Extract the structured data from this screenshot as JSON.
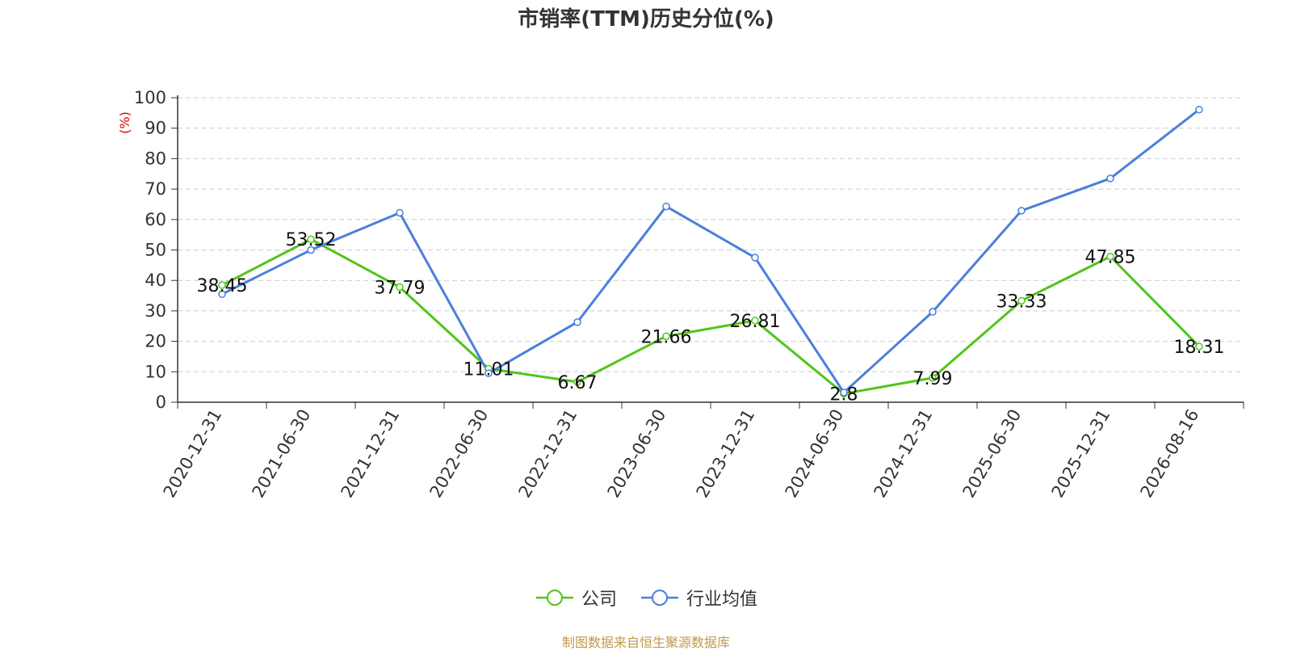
{
  "title": "市销率(TTM)历史分位(%)",
  "source_note": "制图数据来自恒生聚源数据库",
  "chart_data": {
    "type": "line",
    "title": "市销率(TTM)历史分位(%)",
    "xlabel": "",
    "ylabel": "(%)",
    "ylim": [
      0,
      100
    ],
    "yticks": [
      0,
      10,
      20,
      30,
      40,
      50,
      60,
      70,
      80,
      90,
      100
    ],
    "grid": true,
    "legend_position": "bottom",
    "categories": [
      "2020-12-31",
      "2021-06-30",
      "2021-12-31",
      "2022-06-30",
      "2022-12-31",
      "2023-06-30",
      "2023-12-31",
      "2024-06-30",
      "2024-12-31",
      "2025-06-30",
      "2025-12-31",
      "2026-08-16"
    ],
    "series": [
      {
        "name": "公司",
        "color": "#52c41a",
        "values": [
          38.45,
          53.52,
          37.79,
          11.01,
          6.67,
          21.66,
          26.81,
          2.8,
          7.99,
          33.33,
          47.85,
          18.31
        ],
        "labels": [
          "38.45",
          "53.52",
          "37.79",
          "11.01",
          "6.67",
          "21.66",
          "26.81",
          "2.8",
          "7.99",
          "33.33",
          "47.85",
          "18.31"
        ]
      },
      {
        "name": "行业均值",
        "color": "#4a7fdc",
        "values": [
          35.5,
          50.0,
          62.2,
          9.5,
          26.3,
          64.3,
          47.5,
          3.2,
          29.7,
          62.9,
          73.5,
          96.1
        ]
      }
    ]
  },
  "colors": {
    "title": "#333333",
    "axis": "#333333",
    "grid": "#cccccc",
    "ylabel": "#e00000",
    "source": "#c09a4a"
  }
}
